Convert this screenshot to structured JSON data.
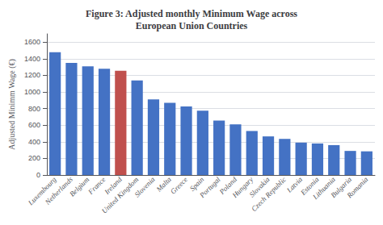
{
  "chart_data": {
    "type": "bar",
    "title": "Figure 3: Adjusted monthly Minimum Wage across\nEuropean Union Countries",
    "ylabel": "Adjusted Minimm Wage (€)",
    "categories": [
      "Luxembourg",
      "Netherlands",
      "Belgium",
      "France",
      "Ireland",
      "United Kingdom",
      "Slovenia",
      "Malta",
      "Greece",
      "Spain",
      "Portugal",
      "Poland",
      "Hungary",
      "Slovakia",
      "Czech Republic",
      "Latvia",
      "Estonia",
      "Lithuania",
      "Bulgaria",
      "Romania"
    ],
    "values": [
      1480,
      1350,
      1310,
      1280,
      1255,
      1140,
      910,
      870,
      825,
      775,
      655,
      610,
      530,
      465,
      435,
      390,
      380,
      360,
      290,
      285
    ],
    "colors": [
      "#4472C4",
      "#4472C4",
      "#4472C4",
      "#4472C4",
      "#C0504D",
      "#4472C4",
      "#4472C4",
      "#4472C4",
      "#4472C4",
      "#4472C4",
      "#4472C4",
      "#4472C4",
      "#4472C4",
      "#4472C4",
      "#4472C4",
      "#4472C4",
      "#4472C4",
      "#4472C4",
      "#4472C4",
      "#4472C4"
    ],
    "ylim": [
      0,
      1700
    ],
    "yticks": [
      0,
      200,
      400,
      600,
      800,
      1000,
      1200,
      1400,
      1600
    ],
    "grid": true
  }
}
